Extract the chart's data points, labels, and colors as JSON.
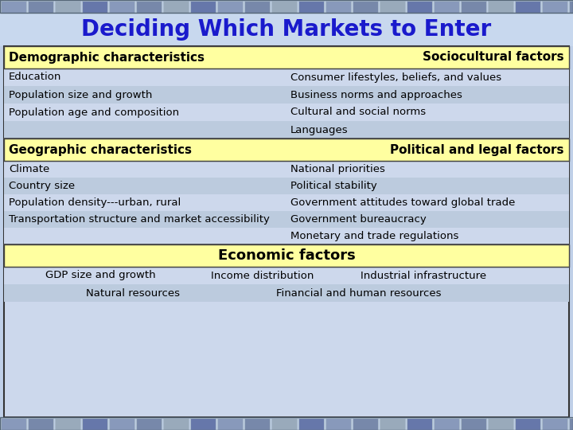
{
  "title": "Deciding Which Markets to Enter",
  "title_color": "#1a1acc",
  "title_fontsize": 20,
  "bg_color_top": "#c8d8ee",
  "bg_color_body": "#c0d0e8",
  "header_bg": "#ffffa0",
  "body_bg": "#ccd8ec",
  "economic_bg": "#ffffa0",
  "sections": [
    {
      "headers": [
        "Demographic characteristics",
        "Sociocultural factors"
      ],
      "rows": [
        [
          "Education",
          "Consumer lifestyles, beliefs, and values"
        ],
        [
          "Population size and growth",
          "Business norms and approaches"
        ],
        [
          "Population age and composition",
          "Cultural and social norms"
        ],
        [
          "",
          "Languages"
        ]
      ]
    },
    {
      "headers": [
        "Geographic characteristics",
        "Political and legal factors"
      ],
      "rows": [
        [
          "Climate",
          "National priorities"
        ],
        [
          "Country size",
          "Political stability"
        ],
        [
          "Population density---urban, rural",
          "Government attitudes toward global trade"
        ],
        [
          "Transportation structure and market accessibility",
          "Government bureaucracy"
        ],
        [
          "",
          "Monetary and trade regulations"
        ]
      ]
    }
  ],
  "economic_title": "Economic factors",
  "economic_rows": [
    [
      "GDP size and growth",
      "Income distribution",
      "Industrial infrastructure"
    ],
    [
      "Natural resources",
      "Financial and human resources"
    ]
  ],
  "header_fontsize": 11,
  "body_fontsize": 9.5,
  "econ_title_fontsize": 13
}
